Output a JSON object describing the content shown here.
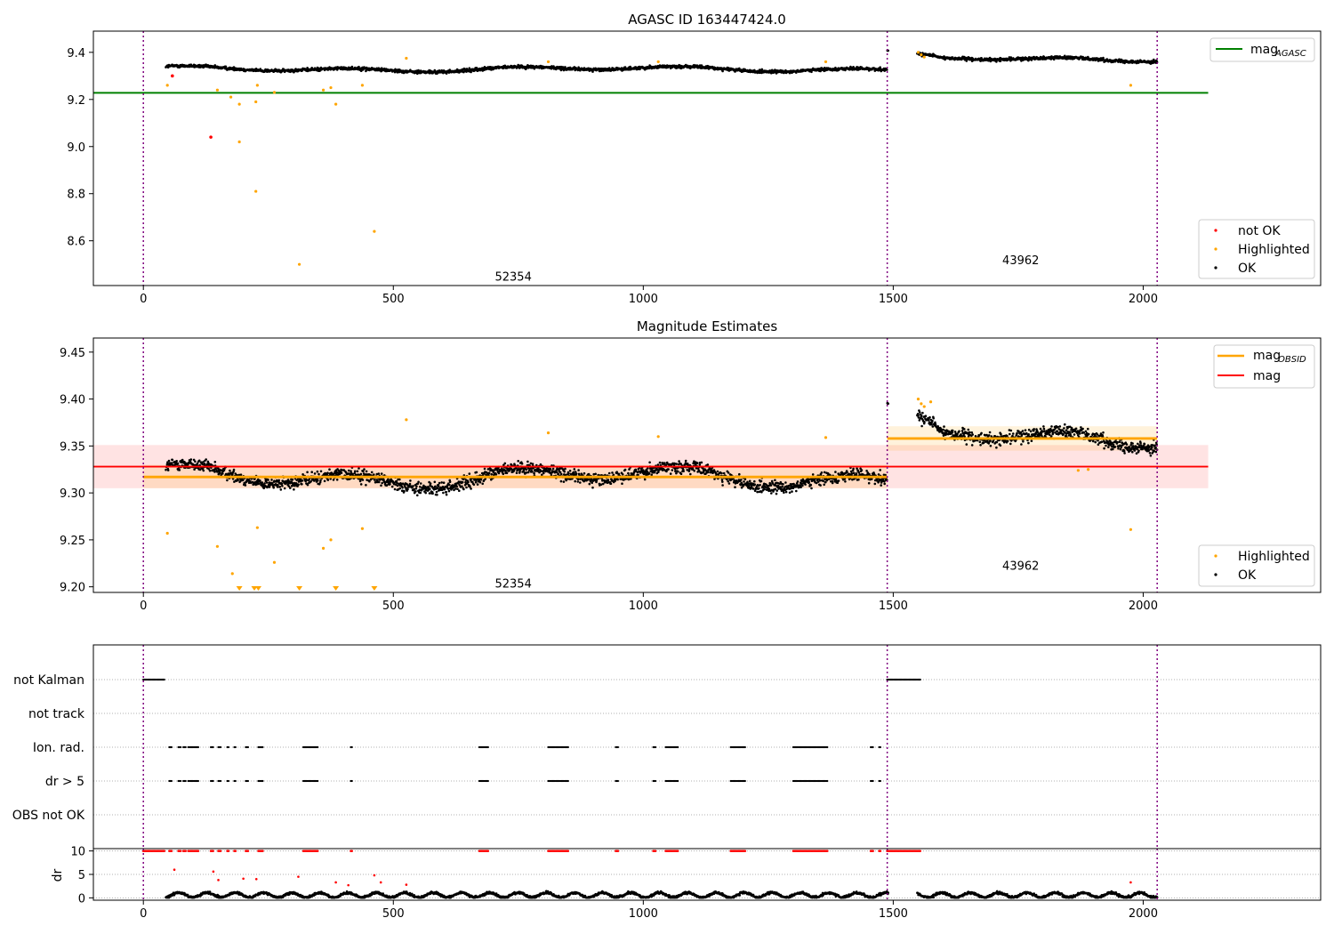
{
  "figure": {
    "background": "#ffffff"
  },
  "colors": {
    "ok": "#000000",
    "highlighted": "#ffa500",
    "not_ok": "#ff0000",
    "mag_agasc": "#008000",
    "mag": "#ff0000",
    "mag_obsid": "#ffa500",
    "obs_boundary": "#800080",
    "grid": "#b0b0b0"
  },
  "observations": [
    {
      "obsid": "52354",
      "start": 0,
      "end": 1488
    },
    {
      "obsid": "43962",
      "start": 1488,
      "end": 2028
    }
  ],
  "chart_data": [
    {
      "type": "scatter",
      "panel": "top",
      "title": "AGASC ID 163447424.0",
      "xlim": [
        -100,
        2355
      ],
      "ylim": [
        8.41,
        9.49
      ],
      "yticks": [
        8.6,
        8.8,
        9.0,
        9.2,
        9.4
      ],
      "xticks": [
        0,
        500,
        1000,
        1500,
        2000
      ],
      "mag_agasc": 9.228,
      "legend_lines": [
        {
          "main": "mag",
          "sub": "AGASC",
          "color": "#008000"
        }
      ],
      "legend_points": [
        {
          "label": "not OK",
          "color": "#ff0000"
        },
        {
          "label": "Highlighted",
          "color": "#ffa500"
        },
        {
          "label": "OK",
          "color": "#000000"
        }
      ],
      "obs_labels": [
        {
          "text": "52354",
          "x": 740,
          "y": 8.45
        },
        {
          "text": "43962",
          "x": 1755,
          "y": 8.52
        }
      ],
      "highlighted_points": [
        [
          48,
          9.26
        ],
        [
          148,
          9.24
        ],
        [
          175,
          9.21
        ],
        [
          192,
          9.18
        ],
        [
          192,
          9.02
        ],
        [
          225,
          9.19
        ],
        [
          228,
          9.26
        ],
        [
          225,
          8.81
        ],
        [
          262,
          9.23
        ],
        [
          312,
          8.5
        ],
        [
          360,
          9.24
        ],
        [
          375,
          9.25
        ],
        [
          385,
          9.18
        ],
        [
          438,
          9.26
        ],
        [
          462,
          8.64
        ],
        [
          526,
          9.375
        ],
        [
          810,
          9.36
        ],
        [
          1030,
          9.36
        ],
        [
          1365,
          9.36
        ],
        [
          1550,
          9.4
        ],
        [
          1556,
          9.39
        ],
        [
          1562,
          9.38
        ],
        [
          1975,
          9.26
        ]
      ],
      "notok_points": [
        [
          135,
          9.04
        ],
        [
          58,
          9.3
        ]
      ]
    },
    {
      "type": "scatter",
      "panel": "middle",
      "title": "Magnitude Estimates",
      "xlim": [
        -100,
        2355
      ],
      "ylim": [
        9.194,
        9.465
      ],
      "yticks": [
        9.2,
        9.25,
        9.3,
        9.35,
        9.4,
        9.45
      ],
      "xticks": [
        0,
        500,
        1000,
        1500,
        2000
      ],
      "mag": {
        "value": 9.328,
        "band": [
          9.305,
          9.351
        ],
        "x_range": [
          -100,
          2130
        ]
      },
      "mag_obsid": [
        {
          "x_range": [
            0,
            1488
          ],
          "value": 9.317,
          "band": [
            9.305,
            9.33
          ]
        },
        {
          "x_range": [
            1488,
            2028
          ],
          "value": 9.358,
          "band": [
            9.345,
            9.371
          ]
        }
      ],
      "legend_lines": [
        {
          "main": "mag",
          "sub": "OBSID",
          "color": "#ffa500"
        },
        {
          "main": "mag",
          "sub": "",
          "color": "#ff0000"
        }
      ],
      "legend_points": [
        {
          "label": "Highlighted",
          "color": "#ffa500"
        },
        {
          "label": "OK",
          "color": "#000000"
        }
      ],
      "obs_labels": [
        {
          "text": "52354",
          "x": 740,
          "y": 9.204
        },
        {
          "text": "43962",
          "x": 1755,
          "y": 9.223
        }
      ],
      "highlighted_points": [
        [
          48,
          9.257
        ],
        [
          148,
          9.243
        ],
        [
          178,
          9.214
        ],
        [
          228,
          9.263
        ],
        [
          262,
          9.226
        ],
        [
          360,
          9.241
        ],
        [
          375,
          9.25
        ],
        [
          438,
          9.262
        ],
        [
          526,
          9.378
        ],
        [
          810,
          9.364
        ],
        [
          1030,
          9.36
        ],
        [
          1365,
          9.359
        ],
        [
          1550,
          9.4
        ],
        [
          1556,
          9.395
        ],
        [
          1562,
          9.392
        ],
        [
          1575,
          9.397
        ],
        [
          1975,
          9.261
        ],
        [
          1870,
          9.324
        ],
        [
          1890,
          9.325
        ]
      ],
      "clipped_markers": [
        192,
        222,
        230,
        312,
        385,
        462
      ]
    },
    {
      "type": "scatter",
      "panel": "flags",
      "xlim": [
        -100,
        2355
      ],
      "rows": [
        "not Kalman",
        "not track",
        "Ion. rad.",
        "dr > 5",
        "OBS not OK"
      ],
      "flag_segments": {
        "not Kalman": [
          [
            0,
            42
          ],
          [
            1488,
            1555
          ]
        ],
        "not track": [],
        "Ion. rad.": [
          [
            52,
            58
          ],
          [
            70,
            75
          ],
          [
            80,
            85
          ],
          [
            90,
            110
          ],
          [
            135,
            140
          ],
          [
            150,
            155
          ],
          [
            168,
            172
          ],
          [
            182,
            186
          ],
          [
            205,
            210
          ],
          [
            230,
            240
          ],
          [
            320,
            350
          ],
          [
            415,
            418
          ],
          [
            672,
            690
          ],
          [
            810,
            850
          ],
          [
            945,
            950
          ],
          [
            1020,
            1025
          ],
          [
            1045,
            1070
          ],
          [
            1175,
            1205
          ],
          [
            1300,
            1370
          ],
          [
            1455,
            1460
          ],
          [
            1472,
            1476
          ]
        ],
        "dr > 5": [
          [
            52,
            58
          ],
          [
            70,
            75
          ],
          [
            80,
            85
          ],
          [
            90,
            110
          ],
          [
            135,
            140
          ],
          [
            150,
            155
          ],
          [
            168,
            172
          ],
          [
            182,
            186
          ],
          [
            205,
            210
          ],
          [
            230,
            240
          ],
          [
            320,
            350
          ],
          [
            415,
            418
          ],
          [
            672,
            690
          ],
          [
            810,
            850
          ],
          [
            945,
            950
          ],
          [
            1020,
            1025
          ],
          [
            1045,
            1070
          ],
          [
            1175,
            1205
          ],
          [
            1300,
            1370
          ],
          [
            1455,
            1460
          ],
          [
            1472,
            1476
          ]
        ],
        "OBS not OK": []
      }
    },
    {
      "type": "scatter",
      "panel": "dr",
      "ylabel": "dr",
      "xlim": [
        -100,
        2355
      ],
      "ylim": [
        -0.5,
        10.5
      ],
      "yticks": [
        0,
        5,
        10
      ],
      "xticks": [
        0,
        500,
        1000,
        1500,
        2000
      ],
      "clip_level": 10,
      "red_points": [
        [
          62,
          6.0
        ],
        [
          140,
          5.6
        ],
        [
          150,
          3.8
        ],
        [
          200,
          4.1
        ],
        [
          226,
          4.0
        ],
        [
          310,
          4.5
        ],
        [
          385,
          3.3
        ],
        [
          410,
          2.7
        ],
        [
          462,
          4.8
        ],
        [
          475,
          3.3
        ],
        [
          526,
          2.8
        ],
        [
          1975,
          3.3
        ]
      ]
    }
  ]
}
